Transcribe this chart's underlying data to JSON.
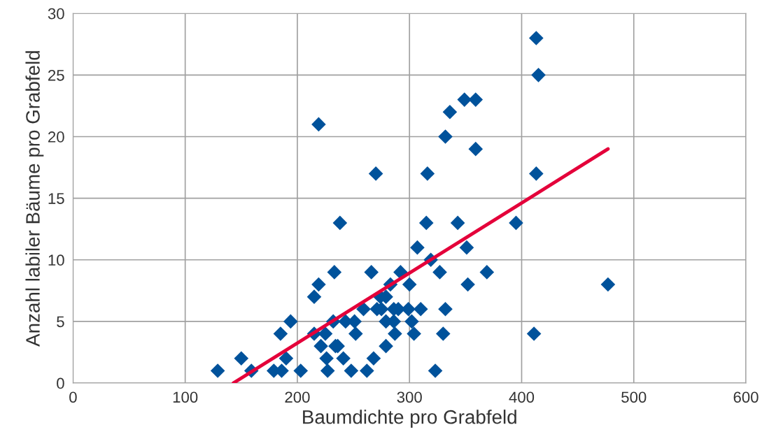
{
  "chart_data": {
    "type": "scatter",
    "xlabel": "Baumdichte pro Grabfeld",
    "ylabel": "Anzahl labiler Bäume pro Grabfeld",
    "xlim": [
      0,
      600
    ],
    "xticks": [
      0,
      100,
      200,
      300,
      400,
      500,
      600
    ],
    "ylim": [
      0,
      30
    ],
    "yticks": [
      0,
      5,
      10,
      15,
      20,
      25,
      30
    ],
    "grid": true,
    "series": [
      {
        "color": "#00529b",
        "marker": "diamond",
        "x": [
          129,
          159,
          179,
          186,
          203,
          227,
          248,
          262,
          323,
          150,
          190,
          226,
          241,
          268,
          221,
          234,
          236,
          279,
          185,
          215,
          225,
          252,
          287,
          304,
          330,
          411,
          194,
          232,
          243,
          251,
          279,
          286,
          302,
          259,
          271,
          275,
          286,
          290,
          299,
          310,
          332,
          215,
          274,
          279,
          219,
          283,
          300,
          352,
          477,
          233,
          266,
          292,
          327,
          369,
          319,
          307,
          351,
          238,
          315,
          343,
          395,
          270,
          316,
          413,
          359,
          332,
          219,
          336,
          349,
          359,
          415,
          413
        ],
        "values": [
          1,
          1,
          1,
          1,
          1,
          1,
          1,
          1,
          1,
          2,
          2,
          2,
          2,
          2,
          3,
          3,
          3,
          3,
          4,
          4,
          4,
          4,
          4,
          4,
          4,
          4,
          5,
          5,
          5,
          5,
          5,
          5,
          5,
          6,
          6,
          6,
          6,
          6,
          6,
          6,
          6,
          7,
          7,
          7,
          8,
          8,
          8,
          8,
          8,
          9,
          9,
          9,
          9,
          9,
          10,
          11,
          11,
          13,
          13,
          13,
          13,
          17,
          17,
          17,
          19,
          20,
          21,
          22,
          23,
          23,
          25,
          28
        ]
      },
      {
        "type": "line",
        "color": "#e4003a",
        "line_style": "solid",
        "marker": "none",
        "x": [
          143,
          477
        ],
        "values": [
          0,
          19
        ]
      }
    ]
  }
}
